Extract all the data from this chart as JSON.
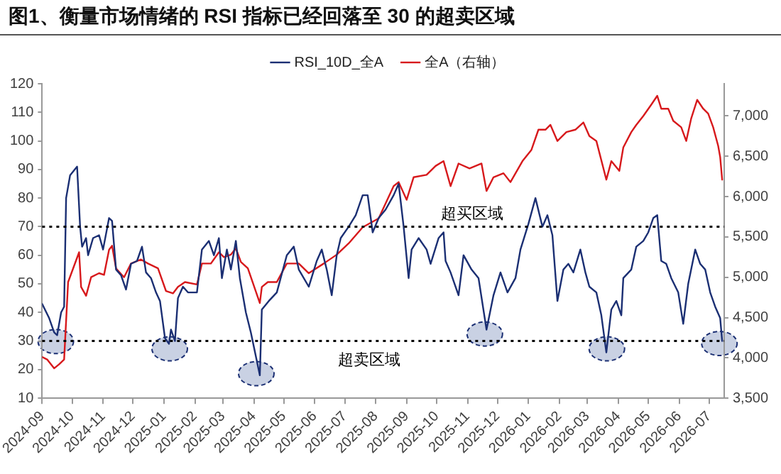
{
  "chart_data": {
    "type": "line",
    "title": "图1、衡量市场情绪的 RSI 指标已经回落至 30 的超卖区域",
    "series": [
      {
        "name": "RSI_10D_全A",
        "color": "#1b2f73",
        "x": [
          "2024-09-01",
          "2024-09-08",
          "2024-09-13",
          "2024-09-16",
          "2024-09-20",
          "2024-09-23",
          "2024-09-25",
          "2024-09-29",
          "2024-10-06",
          "2024-10-09",
          "2024-10-11",
          "2024-10-15",
          "2024-10-17",
          "2024-10-22",
          "2024-10-28",
          "2024-11-01",
          "2024-11-07",
          "2024-11-10",
          "2024-11-14",
          "2024-11-19",
          "2024-11-24",
          "2024-11-29",
          "2024-12-05",
          "2024-12-10",
          "2024-12-14",
          "2024-12-19",
          "2024-12-24",
          "2024-12-28",
          "2025-01-02",
          "2025-01-06",
          "2025-01-08",
          "2025-01-12",
          "2025-01-15",
          "2025-01-20",
          "2025-01-25",
          "2025-02-03",
          "2025-02-08",
          "2025-02-15",
          "2025-02-20",
          "2025-02-25",
          "2025-02-28",
          "2025-03-05",
          "2025-03-09",
          "2025-03-14",
          "2025-03-18",
          "2025-03-24",
          "2025-03-29",
          "2025-04-07",
          "2025-04-09",
          "2025-04-16",
          "2025-04-24",
          "2025-05-04",
          "2025-05-11",
          "2025-05-16",
          "2025-05-26",
          "2025-06-03",
          "2025-06-08",
          "2025-06-13",
          "2025-06-18",
          "2025-06-23",
          "2025-06-27",
          "2025-07-05",
          "2025-07-12",
          "2025-07-19",
          "2025-07-24",
          "2025-07-29",
          "2025-08-04",
          "2025-08-11",
          "2025-08-19",
          "2025-08-24",
          "2025-08-29",
          "2025-09-03",
          "2025-09-06",
          "2025-09-13",
          "2025-09-21",
          "2025-09-25",
          "2025-10-03",
          "2025-10-08",
          "2025-10-10",
          "2025-10-15",
          "2025-10-23",
          "2025-10-28",
          "2025-11-05",
          "2025-11-12",
          "2025-11-20",
          "2025-11-27",
          "2025-12-04",
          "2025-12-11",
          "2025-12-19",
          "2025-12-24",
          "2026-01-01",
          "2026-01-08",
          "2026-01-15",
          "2026-01-20",
          "2026-01-25",
          "2026-01-30",
          "2026-02-05",
          "2026-02-10",
          "2026-02-15",
          "2026-02-22",
          "2026-02-27",
          "2026-03-03",
          "2026-03-10",
          "2026-03-15",
          "2026-03-20",
          "2026-03-25",
          "2026-03-30",
          "2026-04-04",
          "2026-04-06",
          "2026-04-14",
          "2026-04-19",
          "2026-04-26",
          "2026-05-01",
          "2026-05-06",
          "2026-05-10",
          "2026-05-14",
          "2026-05-19",
          "2026-05-24",
          "2026-05-31",
          "2026-06-05",
          "2026-06-10",
          "2026-06-17",
          "2026-06-22",
          "2026-06-27",
          "2026-07-02",
          "2026-07-07",
          "2026-07-12",
          "2026-07-14"
        ],
        "values": [
          43,
          38,
          33,
          32,
          40,
          42,
          80,
          88,
          91,
          70,
          63,
          66,
          60,
          66,
          67,
          62,
          73,
          72,
          55,
          53,
          48,
          57,
          58,
          63,
          54,
          52,
          47,
          44,
          31,
          29,
          34,
          30,
          45,
          49,
          47,
          47,
          62,
          65,
          60,
          66,
          52,
          62,
          55,
          65,
          52,
          40,
          33,
          18,
          41,
          44,
          47,
          60,
          63,
          55,
          49,
          58,
          62,
          55,
          46,
          60,
          66,
          70,
          74,
          81,
          81,
          68,
          73,
          76,
          81,
          85,
          70,
          52,
          62,
          66,
          62,
          57,
          66,
          68,
          58,
          54,
          46,
          60,
          55,
          52,
          34,
          46,
          54,
          47,
          52,
          62,
          71,
          80,
          70,
          74,
          67,
          44,
          55,
          57,
          54,
          62,
          54,
          49,
          47,
          39,
          26,
          41,
          44,
          39,
          52,
          55,
          63,
          65,
          68,
          73,
          74,
          58,
          57,
          52,
          47,
          36,
          50,
          62,
          57,
          55,
          47,
          42,
          38,
          30
        ]
      },
      {
        "name": "全A（右轴）",
        "color": "#d7191c",
        "axis": "y2",
        "x": [
          "2024-09-01",
          "2024-09-06",
          "2024-09-13",
          "2024-09-18",
          "2024-09-23",
          "2024-09-27",
          "2024-10-08",
          "2024-10-10",
          "2024-10-15",
          "2024-10-20",
          "2024-10-28",
          "2024-11-02",
          "2024-11-07",
          "2024-11-10",
          "2024-11-14",
          "2024-11-22",
          "2024-11-29",
          "2024-12-09",
          "2024-12-16",
          "2024-12-26",
          "2025-01-03",
          "2025-01-10",
          "2025-01-15",
          "2025-01-22",
          "2025-02-03",
          "2025-02-08",
          "2025-02-17",
          "2025-02-25",
          "2025-03-02",
          "2025-03-09",
          "2025-03-14",
          "2025-03-19",
          "2025-03-26",
          "2025-04-07",
          "2025-04-09",
          "2025-04-15",
          "2025-04-24",
          "2025-05-04",
          "2025-05-16",
          "2025-05-26",
          "2025-06-10",
          "2025-06-23",
          "2025-07-05",
          "2025-07-19",
          "2025-08-04",
          "2025-08-19",
          "2025-08-24",
          "2025-09-01",
          "2025-09-08",
          "2025-09-21",
          "2025-09-30",
          "2025-10-08",
          "2025-10-15",
          "2025-10-23",
          "2025-11-03",
          "2025-11-15",
          "2025-11-20",
          "2025-11-27",
          "2025-12-07",
          "2025-12-14",
          "2025-12-26",
          "2026-01-04",
          "2026-01-11",
          "2026-01-18",
          "2026-01-23",
          "2026-01-30",
          "2026-02-08",
          "2026-02-17",
          "2026-02-25",
          "2026-03-03",
          "2026-03-10",
          "2026-03-20",
          "2026-03-25",
          "2026-04-02",
          "2026-04-06",
          "2026-04-14",
          "2026-04-19",
          "2026-04-26",
          "2026-05-04",
          "2026-05-10",
          "2026-05-14",
          "2026-05-21",
          "2026-05-26",
          "2026-06-03",
          "2026-06-08",
          "2026-06-13",
          "2026-06-19",
          "2026-06-25",
          "2026-06-30",
          "2026-07-05",
          "2026-07-10",
          "2026-07-12",
          "2026-07-14"
        ],
        "values": [
          4010,
          3980,
          3870,
          3920,
          3980,
          4940,
          5310,
          4880,
          4770,
          5000,
          5050,
          5030,
          5340,
          5390,
          5110,
          5000,
          5170,
          5220,
          5170,
          5110,
          4830,
          4800,
          4880,
          4940,
          4910,
          5170,
          5170,
          5310,
          5250,
          5280,
          5360,
          5190,
          5110,
          4680,
          4880,
          4940,
          4940,
          5170,
          5170,
          5050,
          5170,
          5280,
          5420,
          5620,
          5730,
          6130,
          6180,
          5960,
          6240,
          6270,
          6380,
          6440,
          6130,
          6410,
          6350,
          6410,
          6070,
          6240,
          6290,
          6180,
          6440,
          6580,
          6830,
          6830,
          6890,
          6690,
          6800,
          6830,
          6920,
          6750,
          6690,
          6210,
          6440,
          6320,
          6610,
          6800,
          6890,
          7000,
          7140,
          7250,
          7090,
          7090,
          6940,
          6860,
          6690,
          6970,
          7200,
          7090,
          7030,
          6860,
          6630,
          6490,
          6210
        ]
      }
    ],
    "xlim": [
      "2024-09-01",
      "2026-07-16"
    ],
    "xticks": [
      "2024-09",
      "2024-10",
      "2024-11",
      "2024-12",
      "2025-01",
      "2025-02",
      "2025-03",
      "2025-04",
      "2025-05",
      "2025-06",
      "2025-07",
      "2025-08",
      "2025-09",
      "2025-10",
      "2025-11",
      "2025-12",
      "2026-01",
      "2026-02",
      "2026-03",
      "2026-04",
      "2026-05",
      "2026-06",
      "2026-07"
    ],
    "ylim": [
      10,
      120
    ],
    "yticks": [
      10,
      20,
      30,
      40,
      50,
      60,
      70,
      80,
      90,
      100,
      110,
      120
    ],
    "y2lim": [
      3500,
      7400
    ],
    "y2ticks": [
      {
        "value": 3500,
        "label": "3,500"
      },
      {
        "value": 4000,
        "label": "4,000"
      },
      {
        "value": 4500,
        "label": "4,500"
      },
      {
        "value": 5000,
        "label": "5,000"
      },
      {
        "value": 5500,
        "label": "5,500"
      },
      {
        "value": 6000,
        "label": "6,000"
      },
      {
        "value": 6500,
        "label": "6,500"
      },
      {
        "value": 7000,
        "label": "7,000"
      }
    ],
    "ref_lines": [
      {
        "axis": "y",
        "value": 70,
        "label": "超买区域",
        "color": "#000000",
        "line_style": "dotted"
      },
      {
        "axis": "y",
        "value": 30,
        "label": "超卖区域",
        "color": "#000000",
        "line_style": "dotted"
      }
    ],
    "legend": "top",
    "grid": false,
    "marker": "none",
    "line_style": "solid"
  }
}
